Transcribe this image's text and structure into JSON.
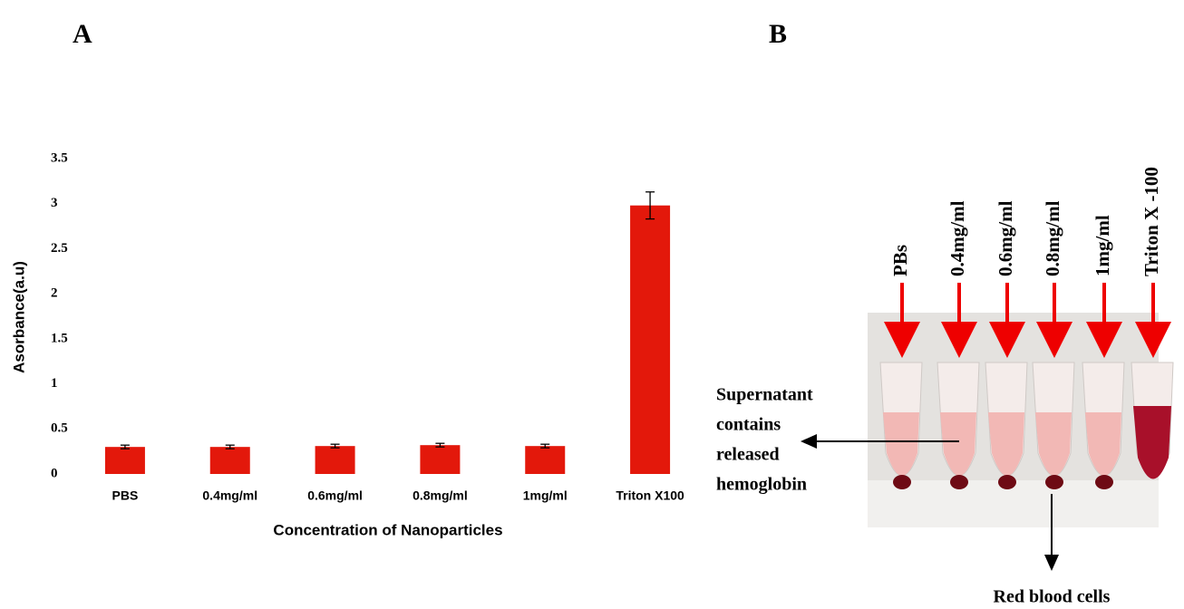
{
  "panel_labels": [
    "A",
    "B"
  ],
  "chart_data": {
    "type": "bar",
    "categories": [
      "PBS",
      "0.4mg/ml",
      "0.6mg/ml",
      "0.8mg/ml",
      "1mg/ml",
      "Triton X100"
    ],
    "values": [
      0.3,
      0.3,
      0.31,
      0.32,
      0.31,
      2.98
    ],
    "errors": [
      0.02,
      0.02,
      0.02,
      0.02,
      0.02,
      0.15
    ],
    "color": "#e3180b",
    "x_label": "Concentration of Nanoparticles",
    "y_label": "Asorbance(a.u)",
    "ylim": [
      0,
      3.5
    ],
    "yticks": [
      0,
      0.5,
      1,
      1.5,
      2,
      2.5,
      3,
      3.5
    ],
    "grid": false
  },
  "photo": {
    "tube_labels": [
      "PBs",
      "0.4mg/ml",
      "0.6mg/ml",
      "0.8mg/ml",
      "1mg/ml",
      "Triton X -100"
    ],
    "supernatant_label": [
      "Supernatant",
      "contains",
      "released",
      "hemoglobin"
    ],
    "pellet_label": "Red blood cells"
  }
}
